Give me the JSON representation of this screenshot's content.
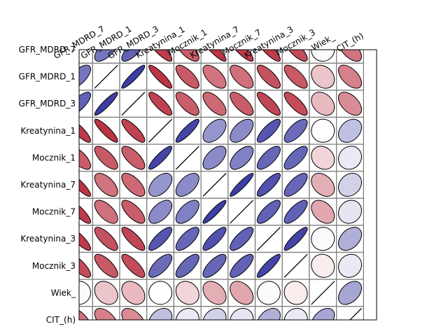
{
  "chart_data": {
    "type": "heatmap",
    "title": "",
    "xlabel": "",
    "ylabel": "",
    "column_labels": [
      "GFR_MDRD_7",
      "GFR_MDRD_1",
      "GFR_MDRD_3",
      "Kreatynina_1",
      "Mocznik_1",
      "Kreatynina_7",
      "Mocznik_7",
      "Kreatynina_3",
      "Mocznik_3",
      "Wiek_",
      "CIT_(h)"
    ],
    "row_labels": [
      "GFR_MDRD_7",
      "GFR_MDRD_1",
      "GFR_MDRD_3",
      "Kreatynina_1",
      "Mocznik_1",
      "Kreatynina_7",
      "Mocznik_7",
      "Kreatynina_3",
      "Mocznik_3",
      "Wiek_",
      "CIT_(h)"
    ],
    "correlation_matrix": [
      [
        1.0,
        0.65,
        0.75,
        -0.85,
        -0.7,
        -0.88,
        -0.85,
        -0.85,
        -0.78,
        0.02,
        -0.6
      ],
      [
        0.65,
        1.0,
        0.92,
        -0.88,
        -0.72,
        -0.6,
        -0.62,
        -0.75,
        -0.72,
        -0.25,
        -0.55
      ],
      [
        0.75,
        0.92,
        1.0,
        -0.82,
        -0.7,
        -0.65,
        -0.7,
        -0.8,
        -0.78,
        -0.3,
        -0.5
      ],
      [
        -0.85,
        -0.88,
        -0.82,
        1.0,
        0.88,
        0.5,
        0.55,
        0.8,
        0.7,
        0.0,
        0.3
      ],
      [
        -0.7,
        -0.72,
        -0.7,
        0.88,
        1.0,
        0.55,
        0.6,
        0.72,
        0.72,
        -0.18,
        0.1
      ],
      [
        -0.88,
        -0.6,
        -0.65,
        0.5,
        0.55,
        1.0,
        0.92,
        0.82,
        0.72,
        -0.35,
        0.22
      ],
      [
        -0.85,
        -0.62,
        -0.7,
        0.55,
        0.6,
        0.92,
        1.0,
        0.75,
        0.75,
        -0.38,
        0.12
      ],
      [
        -0.85,
        -0.75,
        -0.8,
        0.8,
        0.72,
        0.82,
        0.75,
        1.0,
        0.88,
        0.02,
        0.38
      ],
      [
        -0.78,
        -0.72,
        -0.78,
        0.7,
        0.72,
        0.72,
        0.75,
        0.88,
        1.0,
        -0.08,
        0.1
      ],
      [
        0.02,
        -0.25,
        -0.3,
        0.0,
        -0.18,
        -0.35,
        -0.38,
        0.02,
        -0.08,
        1.0,
        0.42
      ],
      [
        -0.6,
        -0.55,
        -0.5,
        0.3,
        0.1,
        0.22,
        0.12,
        0.38,
        0.1,
        0.42,
        1.0
      ]
    ],
    "color_scale": {
      "negative": "#b2182b",
      "zero": "#ffffff",
      "positive": "#2c2c9c"
    },
    "grid": true,
    "legend": "none"
  }
}
